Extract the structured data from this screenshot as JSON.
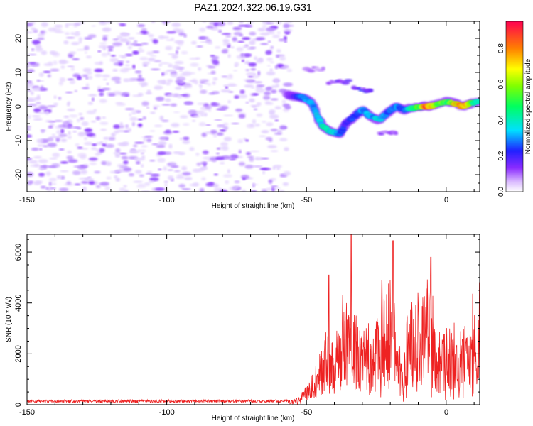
{
  "title": "PAZ1.2024.322.06.19.G31",
  "chart_data": [
    {
      "type": "heatmap",
      "xlabel": "Height of straight line (km)",
      "ylabel": "Frequency (Hz)",
      "xlim": [
        -150,
        12
      ],
      "ylim": [
        -25,
        25
      ],
      "xticks": [
        "-150",
        "-100",
        "-50",
        "0"
      ],
      "yticks": [
        "-20",
        "-10",
        "0",
        "10",
        "20"
      ],
      "colorbar": {
        "label": "Normalized spectral amplitude",
        "range": [
          0,
          0.95
        ],
        "ticks": [
          "0.0",
          "0.2",
          "0.4",
          "0.6",
          "0.8"
        ]
      },
      "noise_region": {
        "x": [
          -150,
          -56
        ],
        "y": [
          -25,
          25
        ],
        "level": 0.1
      },
      "ridge": [
        {
          "x": -57,
          "y": 3.5,
          "v": 0.12
        },
        {
          "x": -54,
          "y": 3.0,
          "v": 0.2
        },
        {
          "x": -51,
          "y": 2.5,
          "v": 0.3
        },
        {
          "x": -48,
          "y": 1.0,
          "v": 0.32
        },
        {
          "x": -46,
          "y": -3.0,
          "v": 0.35
        },
        {
          "x": -44,
          "y": -6.0,
          "v": 0.42
        },
        {
          "x": -41,
          "y": -7.5,
          "v": 0.38
        },
        {
          "x": -38,
          "y": -8.0,
          "v": 0.3
        },
        {
          "x": -36,
          "y": -5.0,
          "v": 0.2
        },
        {
          "x": -33,
          "y": -3.0,
          "v": 0.25
        },
        {
          "x": -30,
          "y": -1.0,
          "v": 0.3
        },
        {
          "x": -27,
          "y": -3.0,
          "v": 0.32
        },
        {
          "x": -24,
          "y": -4.0,
          "v": 0.35
        },
        {
          "x": -21,
          "y": -2.0,
          "v": 0.3
        },
        {
          "x": -18,
          "y": 0.0,
          "v": 0.3
        },
        {
          "x": -15,
          "y": -1.0,
          "v": 0.25
        },
        {
          "x": -12,
          "y": -0.5,
          "v": 0.45
        },
        {
          "x": -9,
          "y": 0.0,
          "v": 0.55
        },
        {
          "x": -7,
          "y": 0.0,
          "v": 0.95
        },
        {
          "x": -4,
          "y": 0.5,
          "v": 0.6
        },
        {
          "x": 0,
          "y": 1.5,
          "v": 0.55
        },
        {
          "x": 3,
          "y": 1.0,
          "v": 0.7
        },
        {
          "x": 6,
          "y": 0.0,
          "v": 0.85
        },
        {
          "x": 9,
          "y": 1.0,
          "v": 0.5
        },
        {
          "x": 12,
          "y": 1.5,
          "v": 0.4
        }
      ],
      "side_bands": [
        {
          "x": [
            -50,
            -44
          ],
          "y": 11.0,
          "v": 0.1
        },
        {
          "x": [
            -42,
            -35
          ],
          "y": 7.0,
          "v": 0.15
        },
        {
          "x": [
            -33,
            -27
          ],
          "y": 5.0,
          "v": 0.2
        },
        {
          "x": [
            -24,
            -18
          ],
          "y": -8.0,
          "v": 0.12
        }
      ]
    },
    {
      "type": "line",
      "xlabel": "Height of straight line (km)",
      "ylabel": "SNR (10 * v/v)",
      "xlim": [
        -150,
        12
      ],
      "ylim": [
        0,
        6700
      ],
      "xticks": [
        "-150",
        "-100",
        "-50",
        "0"
      ],
      "yticks": [
        "0",
        "2000",
        "4000",
        "6000"
      ],
      "color": "#ee2222",
      "envelope": {
        "x": [
          -150,
          -100,
          -60,
          -54,
          -50,
          -47,
          -45,
          -43,
          -40,
          -38,
          -36,
          -34,
          -32,
          -30,
          -28,
          -26,
          -24,
          -22,
          -20,
          -18,
          -16,
          -14,
          -12,
          -10,
          -8,
          -6,
          -4,
          -2,
          0,
          2,
          4,
          6,
          8,
          10,
          11,
          12
        ],
        "y": [
          100,
          100,
          100,
          200,
          700,
          1400,
          2000,
          3000,
          2600,
          3800,
          4500,
          3500,
          4000,
          2800,
          3200,
          2500,
          3800,
          4200,
          5500,
          3500,
          1800,
          3500,
          4000,
          4300,
          4000,
          5200,
          3400,
          2800,
          3000,
          3200,
          3100,
          3000,
          2900,
          3900,
          2100,
          4700
        ]
      },
      "spikes": [
        {
          "x": -34,
          "y": 6700
        },
        {
          "x": -19,
          "y": 6450
        },
        {
          "x": -42,
          "y": 5100
        },
        {
          "x": -5.5,
          "y": 5800
        },
        {
          "x": -23,
          "y": 4900
        },
        {
          "x": 9.5,
          "y": 4350
        },
        {
          "x": 12,
          "y": 4800
        }
      ]
    }
  ]
}
